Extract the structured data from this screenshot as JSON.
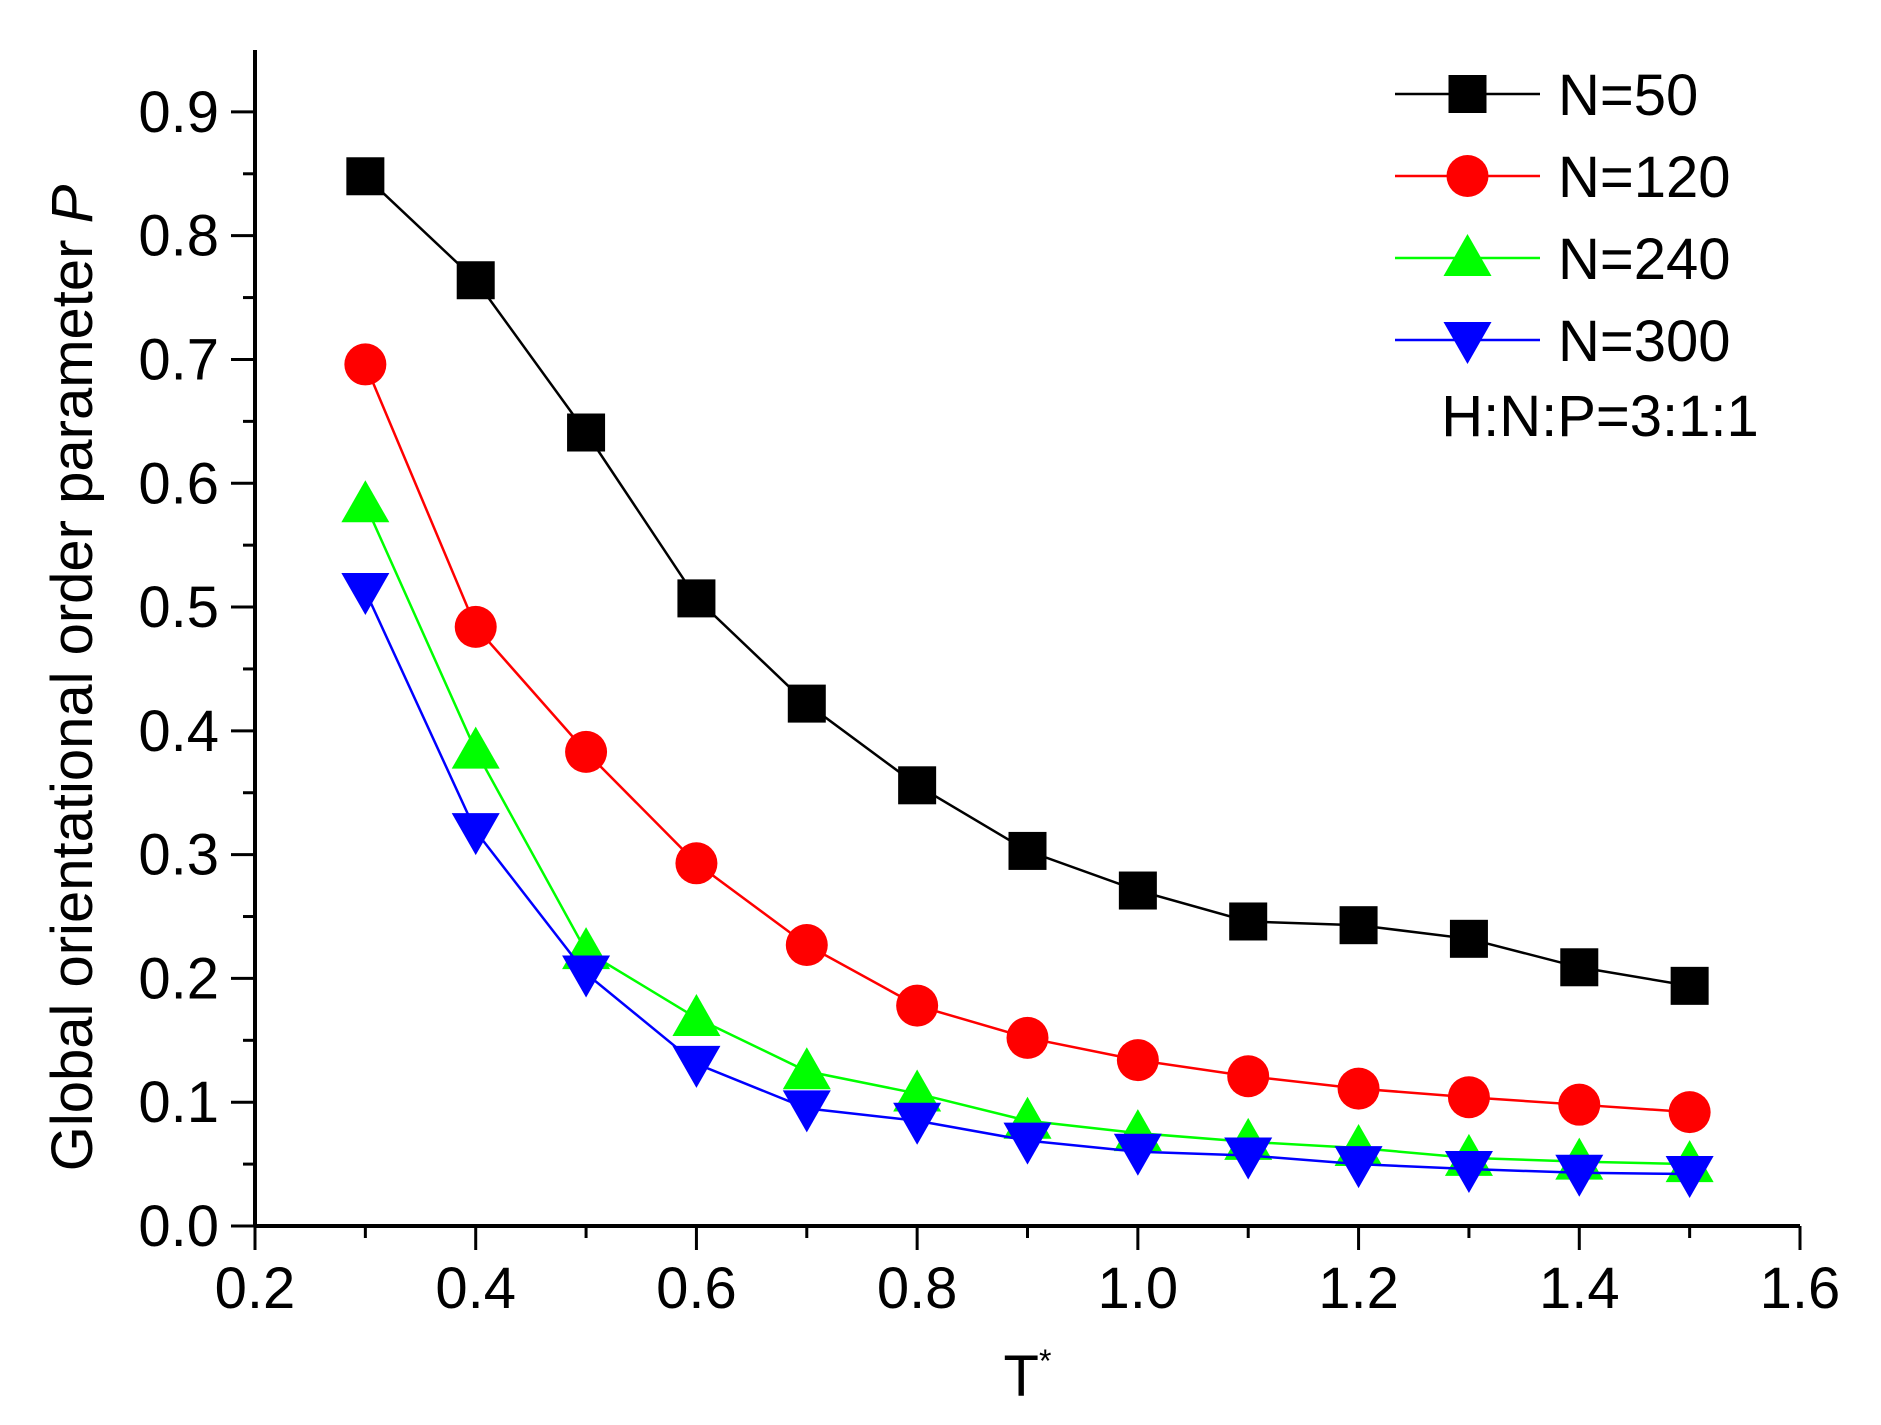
{
  "chart_data": {
    "type": "line",
    "xlabel": "T",
    "xlabel_superscript": "*",
    "ylabel": "Global orientational order parameter",
    "ylabel_symbol": "P",
    "xlim": [
      0.2,
      1.6
    ],
    "ylim": [
      0.0,
      0.95
    ],
    "xticks": [
      "0.2",
      "0.4",
      "0.6",
      "0.8",
      "1.0",
      "1.2",
      "1.4",
      "1.6"
    ],
    "yticks": [
      "0.0",
      "0.1",
      "0.2",
      "0.3",
      "0.4",
      "0.5",
      "0.6",
      "0.7",
      "0.8",
      "0.9"
    ],
    "x": [
      0.3,
      0.4,
      0.5,
      0.6,
      0.7,
      0.8,
      0.9,
      1.0,
      1.1,
      1.2,
      1.3,
      1.4,
      1.5
    ],
    "series": [
      {
        "name": "N=50",
        "color": "#000000",
        "marker": "square",
        "values": [
          0.848,
          0.764,
          0.641,
          0.507,
          0.422,
          0.356,
          0.303,
          0.271,
          0.246,
          0.243,
          0.232,
          0.209,
          0.194
        ]
      },
      {
        "name": "N=120",
        "color": "#ff0000",
        "marker": "circle",
        "values": [
          0.696,
          0.484,
          0.383,
          0.293,
          0.227,
          0.178,
          0.152,
          0.134,
          0.121,
          0.111,
          0.104,
          0.098,
          0.092
        ]
      },
      {
        "name": "N=240",
        "color": "#00ff00",
        "marker": "triangle-up",
        "values": [
          0.583,
          0.384,
          0.222,
          0.168,
          0.125,
          0.107,
          0.085,
          0.075,
          0.068,
          0.063,
          0.055,
          0.052,
          0.05
        ]
      },
      {
        "name": "N=300",
        "color": "#0000ff",
        "marker": "triangle-down",
        "values": [
          0.513,
          0.319,
          0.204,
          0.131,
          0.095,
          0.085,
          0.069,
          0.06,
          0.057,
          0.05,
          0.046,
          0.043,
          0.042
        ]
      }
    ],
    "annotation": "H:N:P=3:1:1",
    "legend_position": "top-right",
    "grid": false
  }
}
